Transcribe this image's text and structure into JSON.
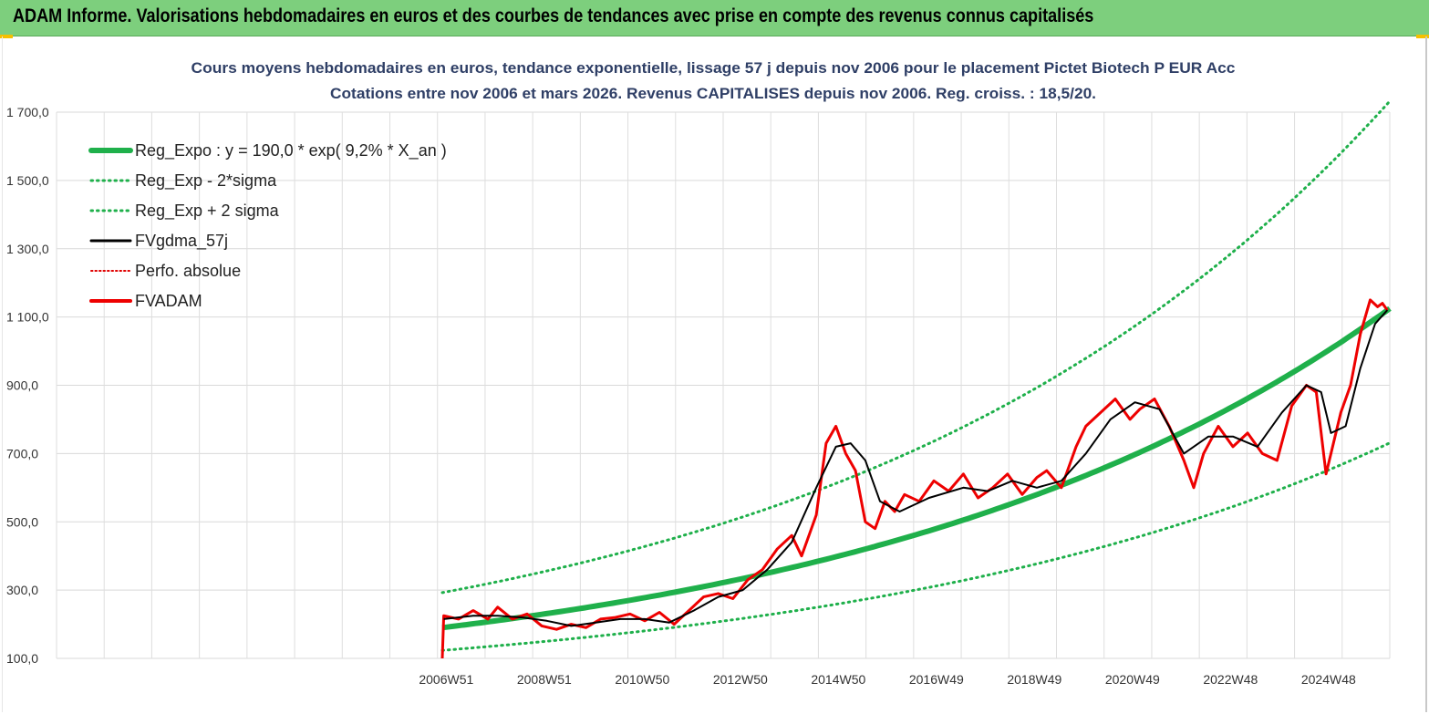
{
  "header": {
    "title": "ADAM Informe. Valorisations hebdomadaires en euros et des courbes de tendances avec prise en compte des revenus connus capitalisés"
  },
  "chart_data": {
    "type": "line",
    "title": "Cours moyens hebdomadaires en euros, tendance exponentielle, lissage 57 j depuis nov 2006 pour le placement Pictet Biotech P EUR Acc",
    "subtitle": "Cotations entre nov 2006 et mars 2026. Revenus CAPITALISES depuis nov 2006. Reg. croiss. : 18,5/20.",
    "xlabel": "",
    "ylabel": "",
    "ylim": [
      100,
      1700
    ],
    "y_ticks": [
      "1 700,0",
      "1 500,0",
      "1 300,0",
      "1 100,0",
      "900,0",
      "700,0",
      "500,0",
      "300,0",
      "100,0"
    ],
    "x_ticks": [
      "2006W51",
      "2008W51",
      "2010W50",
      "2012W50",
      "2014W50",
      "2016W49",
      "2018W49",
      "2020W49",
      "2022W48",
      "2024W48"
    ],
    "xlim": [
      1999.0,
      2026.2
    ],
    "grid": true,
    "legend_position": "top-left",
    "regression": {
      "a": 190.0,
      "rate": 0.092,
      "start_year": 2006.87,
      "end_year": 2026.2,
      "lower_factor": 0.65,
      "upper_factor": 1.54
    },
    "series": [
      {
        "name": "Reg_Expo : y = 190,0 * exp( 9,2% *  X_an )",
        "style": "thick-solid",
        "color": "#1fb04b"
      },
      {
        "name": "Reg_Exp - 2*sigma",
        "style": "dotted",
        "color": "#1fb04b"
      },
      {
        "name": "Reg_Exp + 2 sigma",
        "style": "dotted",
        "color": "#1fb04b"
      },
      {
        "name": "FVgdma_57j",
        "style": "solid",
        "color": "#000000",
        "x": [
          2006.9,
          2007.5,
          2008.0,
          2008.5,
          2009.0,
          2009.5,
          2010.0,
          2010.5,
          2011.0,
          2011.5,
          2012.0,
          2012.5,
          2013.0,
          2013.5,
          2014.0,
          2014.5,
          2014.9,
          2015.2,
          2015.5,
          2015.8,
          2016.2,
          2016.8,
          2017.5,
          2018.0,
          2018.5,
          2019.0,
          2019.5,
          2020.0,
          2020.5,
          2021.0,
          2021.5,
          2022.0,
          2022.5,
          2023.0,
          2023.5,
          2024.0,
          2024.5,
          2024.8,
          2025.0,
          2025.3,
          2025.6,
          2025.9,
          2026.15
        ],
        "y": [
          215,
          225,
          225,
          220,
          210,
          195,
          205,
          215,
          215,
          205,
          240,
          280,
          300,
          360,
          440,
          600,
          720,
          730,
          680,
          560,
          530,
          570,
          600,
          590,
          620,
          600,
          620,
          700,
          800,
          850,
          830,
          700,
          750,
          750,
          720,
          820,
          900,
          880,
          760,
          780,
          950,
          1080,
          1120
        ]
      },
      {
        "name": "Perfo. absolue",
        "style": "dotted",
        "color": "#e00000"
      },
      {
        "name": "FVADAM",
        "style": "thick-solid",
        "color": "#ee0000",
        "x": [
          2006.87,
          2006.9,
          2007.2,
          2007.5,
          2007.8,
          2008.0,
          2008.3,
          2008.6,
          2008.9,
          2009.2,
          2009.5,
          2009.8,
          2010.1,
          2010.4,
          2010.7,
          2011.0,
          2011.3,
          2011.6,
          2011.9,
          2012.2,
          2012.5,
          2012.8,
          2013.1,
          2013.4,
          2013.7,
          2014.0,
          2014.2,
          2014.5,
          2014.7,
          2014.9,
          2015.1,
          2015.3,
          2015.5,
          2015.7,
          2015.9,
          2016.1,
          2016.3,
          2016.6,
          2016.9,
          2017.2,
          2017.5,
          2017.8,
          2018.1,
          2018.4,
          2018.7,
          2019.0,
          2019.2,
          2019.5,
          2019.8,
          2020.0,
          2020.3,
          2020.6,
          2020.9,
          2021.1,
          2021.4,
          2021.7,
          2022.0,
          2022.2,
          2022.4,
          2022.7,
          2023.0,
          2023.3,
          2023.6,
          2023.9,
          2024.2,
          2024.5,
          2024.7,
          2024.9,
          2025.0,
          2025.2,
          2025.4,
          2025.6,
          2025.8,
          2025.95,
          2026.05,
          2026.15
        ],
        "y": [
          100,
          225,
          215,
          240,
          215,
          250,
          215,
          230,
          195,
          185,
          200,
          190,
          215,
          220,
          230,
          210,
          235,
          200,
          240,
          280,
          290,
          275,
          330,
          360,
          420,
          460,
          400,
          520,
          730,
          780,
          700,
          650,
          500,
          480,
          560,
          530,
          580,
          560,
          620,
          590,
          640,
          570,
          600,
          640,
          580,
          630,
          650,
          600,
          720,
          780,
          820,
          860,
          800,
          830,
          860,
          780,
          680,
          600,
          700,
          780,
          720,
          760,
          700,
          680,
          840,
          900,
          880,
          640,
          700,
          820,
          900,
          1050,
          1150,
          1130,
          1140,
          1120
        ]
      }
    ]
  }
}
